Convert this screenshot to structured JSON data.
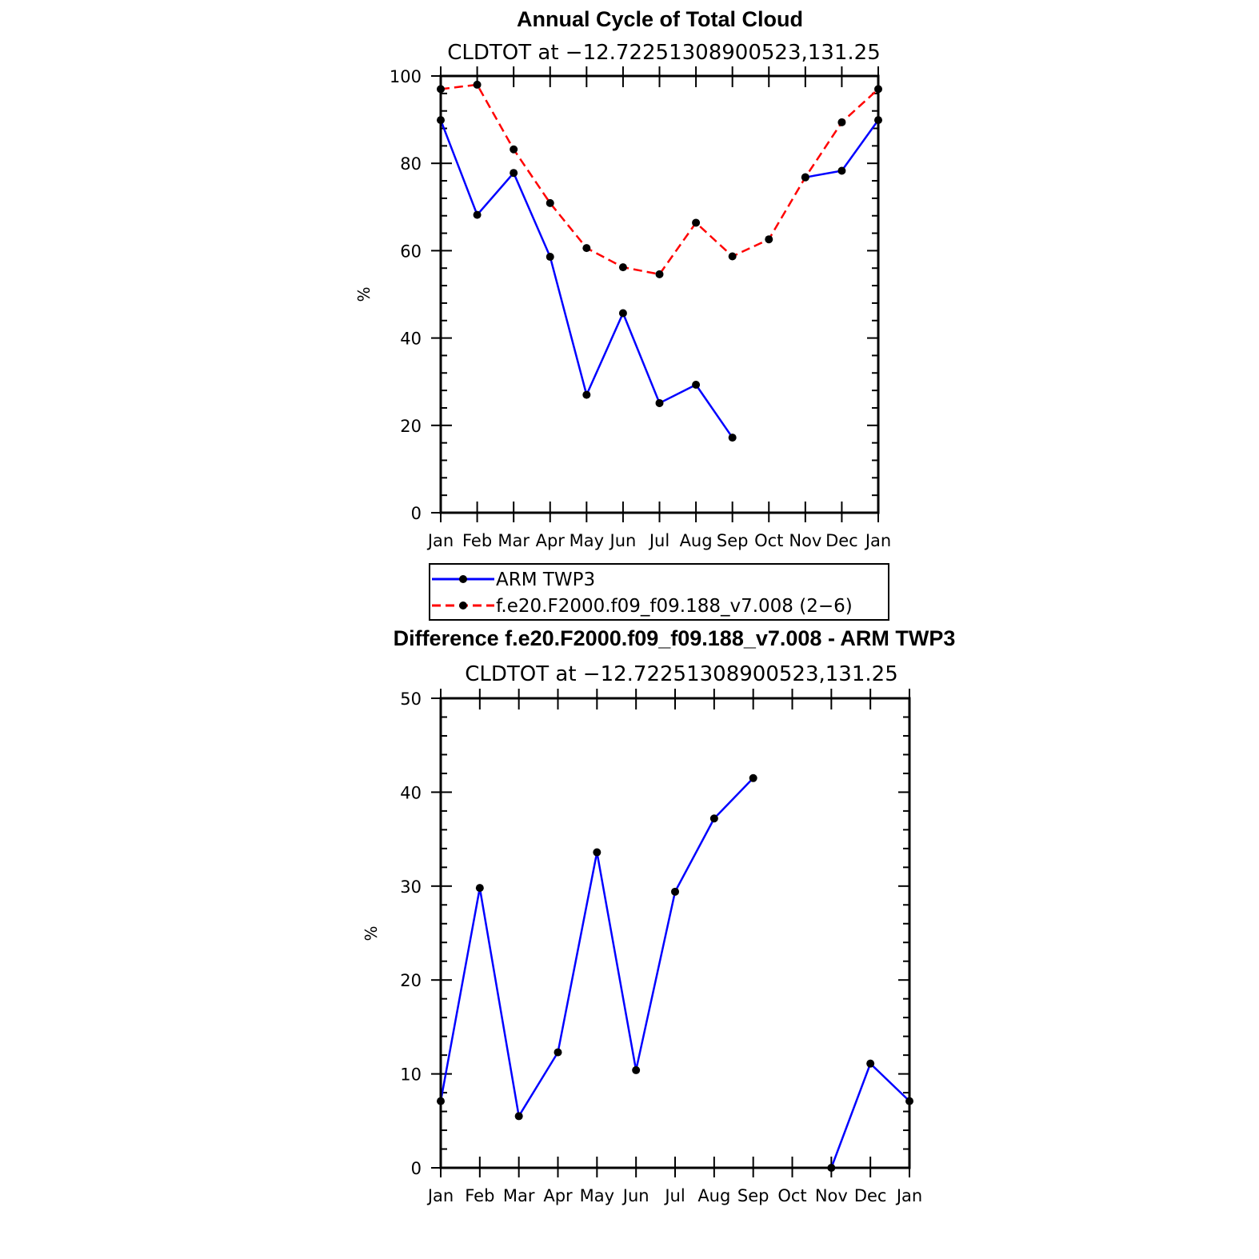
{
  "chart_data": [
    {
      "type": "line",
      "title": "Annual Cycle of Total Cloud",
      "subtitle": "CLDTOT at −12.72251308900523,131.25",
      "ylabel": "%",
      "ylim": [
        0,
        100
      ],
      "yticks": [
        "0",
        "20",
        "40",
        "60",
        "80",
        "100"
      ],
      "categories": [
        "Jan",
        "Feb",
        "Mar",
        "Apr",
        "May",
        "Jun",
        "Jul",
        "Aug",
        "Sep",
        "Oct",
        "Nov",
        "Dec",
        "Jan"
      ],
      "series": [
        {
          "name": "ARM TWP3",
          "color": "#0000ff",
          "dash": "solid",
          "values": [
            89.9,
            68.2,
            77.8,
            58.6,
            27.0,
            45.7,
            25.1,
            29.3,
            17.2,
            null,
            76.8,
            78.3,
            89.9
          ]
        },
        {
          "name": "f.e20.F2000.f09_f09.188_v7.008 (2−6)",
          "color": "#ff0000",
          "dash": "dashed",
          "values": [
            97.0,
            98.0,
            83.2,
            70.9,
            60.6,
            56.2,
            54.6,
            66.4,
            58.7,
            62.6,
            76.8,
            89.4,
            97.0
          ]
        }
      ],
      "legend": "below"
    },
    {
      "type": "line",
      "title": "Difference f.e20.F2000.f09_f09.188_v7.008 - ARM TWP3",
      "subtitle": "CLDTOT at −12.72251308900523,131.25",
      "ylabel": "%",
      "ylim": [
        0,
        50
      ],
      "yticks": [
        "0",
        "10",
        "20",
        "30",
        "40",
        "50"
      ],
      "categories": [
        "Jan",
        "Feb",
        "Mar",
        "Apr",
        "May",
        "Jun",
        "Jul",
        "Aug",
        "Sep",
        "Oct",
        "Nov",
        "Dec",
        "Jan"
      ],
      "series": [
        {
          "color": "#0000ff",
          "dash": "solid",
          "values": [
            7.1,
            29.8,
            5.5,
            12.3,
            33.6,
            10.4,
            29.4,
            37.2,
            41.5,
            null,
            0.0,
            11.1,
            7.1
          ]
        }
      ]
    }
  ]
}
